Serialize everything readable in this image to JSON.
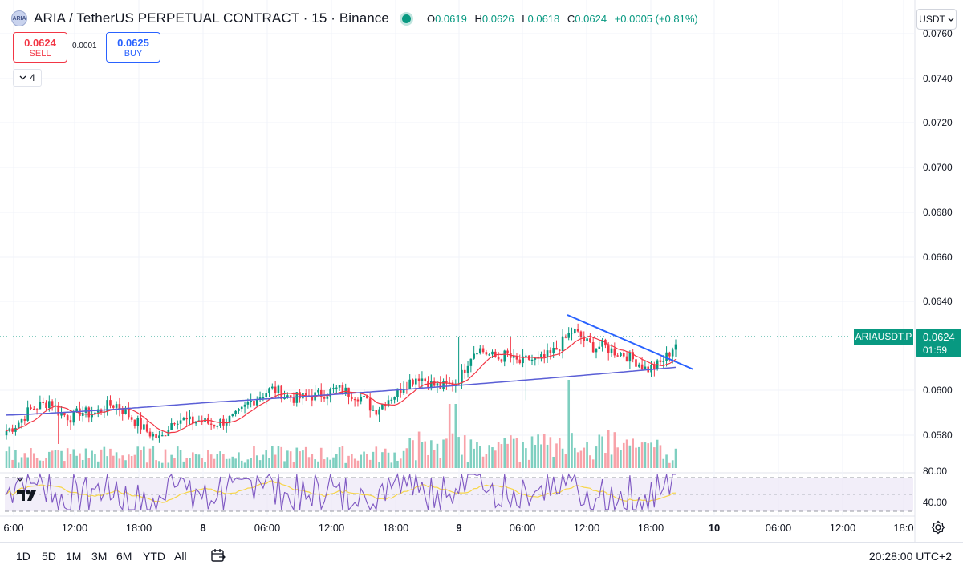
{
  "header": {
    "logo_text": "ARIA",
    "title": "ARIA / TetherUS PERPETUAL CONTRACT · 15 · Binance",
    "ohlc": [
      {
        "k": "O",
        "v": "0.0619"
      },
      {
        "k": "H",
        "v": "0.0626"
      },
      {
        "k": "L",
        "v": "0.0618"
      },
      {
        "k": "C",
        "v": "0.0624"
      }
    ],
    "change": "+0.0005 (+0.81%)"
  },
  "trade": {
    "sell_price": "0.0624",
    "sell_label": "SELL",
    "spread": "0.0001",
    "buy_price": "0.0625",
    "buy_label": "BUY"
  },
  "indicators_toggle": {
    "count": "4"
  },
  "currency_select": {
    "value": "USDT"
  },
  "chart_data": {
    "type": "candlestick",
    "symbol_label": "ARIAUSDT.P",
    "last_price": "0.0624",
    "countdown": "01:59",
    "price_axis": {
      "ticks": [
        "0.0760",
        "0.0740",
        "0.0720",
        "0.0700",
        "0.0680",
        "0.0660",
        "0.0640",
        "0.0600",
        "0.0580"
      ],
      "range": [
        0.0567,
        0.0767
      ]
    },
    "time_axis": {
      "ticks": [
        "6:00",
        "12:00",
        "18:00",
        "8",
        "06:00",
        "12:00",
        "18:00",
        "9",
        "06:00",
        "12:00",
        "18:00",
        "10",
        "06:00",
        "12:00",
        "18:0"
      ],
      "bold": [
        "8",
        "9",
        "10"
      ]
    },
    "series_close": [
      0.0584,
      0.0586,
      0.0589,
      0.0593,
      0.0595,
      0.0596,
      0.0598,
      0.0593,
      0.0591,
      0.059,
      0.0593,
      0.0592,
      0.0592,
      0.0594,
      0.0596,
      0.0596,
      0.0593,
      0.059,
      0.0587,
      0.0584,
      0.0582,
      0.058,
      0.0586,
      0.059,
      0.0589,
      0.0588,
      0.0589,
      0.0588,
      0.0587,
      0.0588,
      0.0589,
      0.059,
      0.0593,
      0.0597,
      0.0599,
      0.0601,
      0.0603,
      0.0602,
      0.06,
      0.0599,
      0.0599,
      0.06,
      0.06,
      0.0601,
      0.0602,
      0.0603,
      0.0602,
      0.0601,
      0.06,
      0.0597,
      0.0593,
      0.0596,
      0.0599,
      0.0601,
      0.0605,
      0.0607,
      0.0609,
      0.0607,
      0.0605,
      0.0604,
      0.0605,
      0.0606,
      0.061,
      0.0618,
      0.0622,
      0.062,
      0.0618,
      0.0617,
      0.0619,
      0.0616,
      0.0615,
      0.0617,
      0.0616,
      0.0617,
      0.0619,
      0.0622,
      0.0626,
      0.063,
      0.0627,
      0.0624,
      0.0622,
      0.0623,
      0.0621,
      0.062,
      0.0619,
      0.0617,
      0.0615,
      0.0612,
      0.0613,
      0.0615,
      0.0619,
      0.0624
    ],
    "ma_fast_note": "red moving average",
    "ma_slow_range": [
      0.0593,
      0.0613
    ],
    "trendline": {
      "from": [
        0.0632,
        0.0632
      ],
      "to": [
        0.0609,
        0.0609
      ]
    },
    "rsi": {
      "levels": [
        "80.00",
        "40.00"
      ],
      "band": [
        70,
        30
      ]
    },
    "colors": {
      "up": "#089981",
      "down": "#f23645",
      "ma_fast": "#f23645",
      "ma_slow": "#5b5fd6",
      "trend": "#2962ff",
      "rsi": "#7e57c2",
      "rsi_ma": "#f7d64a",
      "price_line": "#089981"
    },
    "grid": true
  },
  "bottom": {
    "ranges": [
      "1D",
      "5D",
      "1M",
      "3M",
      "6M",
      "YTD",
      "All"
    ],
    "clock": "20:28:00 UTC+2"
  }
}
